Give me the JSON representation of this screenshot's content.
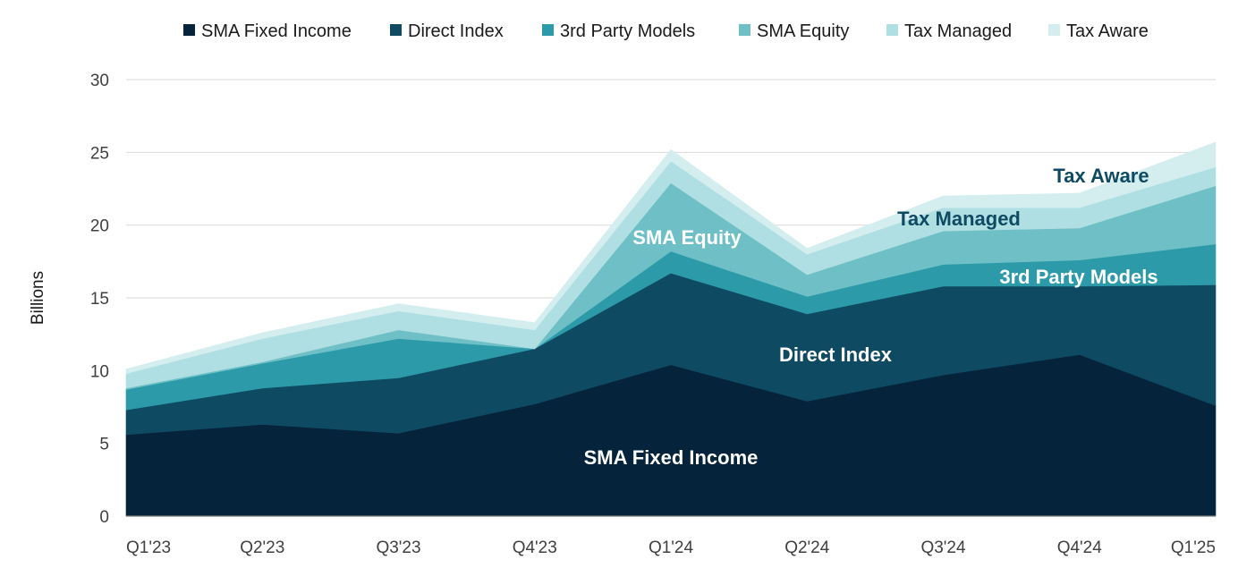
{
  "chart_data": {
    "type": "area",
    "stacked": true,
    "categories": [
      "Q1'23",
      "Q2'23",
      "Q3'23",
      "Q4'23",
      "Q1'24",
      "Q2'24",
      "Q3'24",
      "Q4'24",
      "Q1'25"
    ],
    "series": [
      {
        "name": "SMA Fixed Income",
        "color": "#05243b",
        "values": [
          5.6,
          6.3,
          5.7,
          7.7,
          10.4,
          7.9,
          9.7,
          11.1,
          7.6
        ]
      },
      {
        "name": "Direct Index",
        "color": "#0f4a63",
        "values": [
          1.7,
          2.5,
          3.8,
          3.8,
          6.3,
          6.0,
          6.1,
          4.7,
          8.3
        ]
      },
      {
        "name": "3rd Party Models",
        "color": "#2c9aa8",
        "values": [
          1.4,
          1.7,
          2.7,
          0.0,
          1.5,
          1.2,
          1.5,
          1.8,
          2.8
        ]
      },
      {
        "name": "SMA Equity",
        "color": "#6fc0c6",
        "values": [
          0.1,
          0.1,
          0.6,
          0.0,
          4.7,
          1.5,
          2.3,
          2.2,
          4.0
        ]
      },
      {
        "name": "Tax Managed",
        "color": "#b0dfe3",
        "values": [
          1.0,
          1.6,
          1.3,
          1.3,
          1.5,
          1.4,
          1.6,
          1.4,
          1.3
        ]
      },
      {
        "name": "Tax Aware",
        "color": "#d4eef0",
        "values": [
          0.3,
          0.4,
          0.5,
          0.5,
          0.8,
          0.4,
          0.8,
          1.0,
          1.7
        ]
      }
    ],
    "ylabel": "Billions",
    "ylim": [
      0,
      30
    ],
    "yticks": [
      0,
      5,
      10,
      15,
      20,
      25,
      30
    ],
    "grid": true,
    "legend": "top",
    "annotations": [
      {
        "text": "SMA Fixed Income",
        "color": "#ffffff"
      },
      {
        "text": "Direct Index",
        "color": "#ffffff"
      },
      {
        "text": "3rd Party Models",
        "color": "#ffffff"
      },
      {
        "text": "SMA Equity",
        "color": "#ffffff"
      },
      {
        "text": "Tax Managed",
        "color": "#0f4a63"
      },
      {
        "text": "Tax Aware",
        "color": "#0f4a63"
      }
    ]
  }
}
